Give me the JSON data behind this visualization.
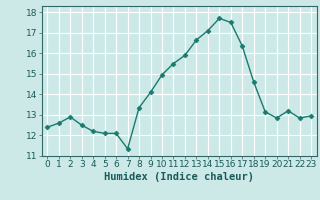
{
  "x": [
    0,
    1,
    2,
    3,
    4,
    5,
    6,
    7,
    8,
    9,
    10,
    11,
    12,
    13,
    14,
    15,
    16,
    17,
    18,
    19,
    20,
    21,
    22,
    23
  ],
  "y": [
    12.4,
    12.6,
    12.9,
    12.5,
    12.2,
    12.1,
    12.1,
    11.35,
    13.35,
    14.1,
    14.95,
    15.5,
    15.9,
    16.65,
    17.1,
    17.7,
    17.5,
    16.35,
    14.6,
    13.15,
    12.85,
    13.2,
    12.85,
    12.95
  ],
  "line_color": "#1a7a6e",
  "marker": "D",
  "marker_size": 2.5,
  "bg_color": "#cce9e8",
  "grid_color": "#ffffff",
  "xlabel": "Humidex (Indice chaleur)",
  "xlim": [
    -0.5,
    23.5
  ],
  "ylim": [
    11,
    18.3
  ],
  "yticks": [
    11,
    12,
    13,
    14,
    15,
    16,
    17,
    18
  ],
  "xticks": [
    0,
    1,
    2,
    3,
    4,
    5,
    6,
    7,
    8,
    9,
    10,
    11,
    12,
    13,
    14,
    15,
    16,
    17,
    18,
    19,
    20,
    21,
    22,
    23
  ],
  "tick_fontsize": 6.5,
  "xlabel_fontsize": 7.5,
  "linewidth": 1.0
}
